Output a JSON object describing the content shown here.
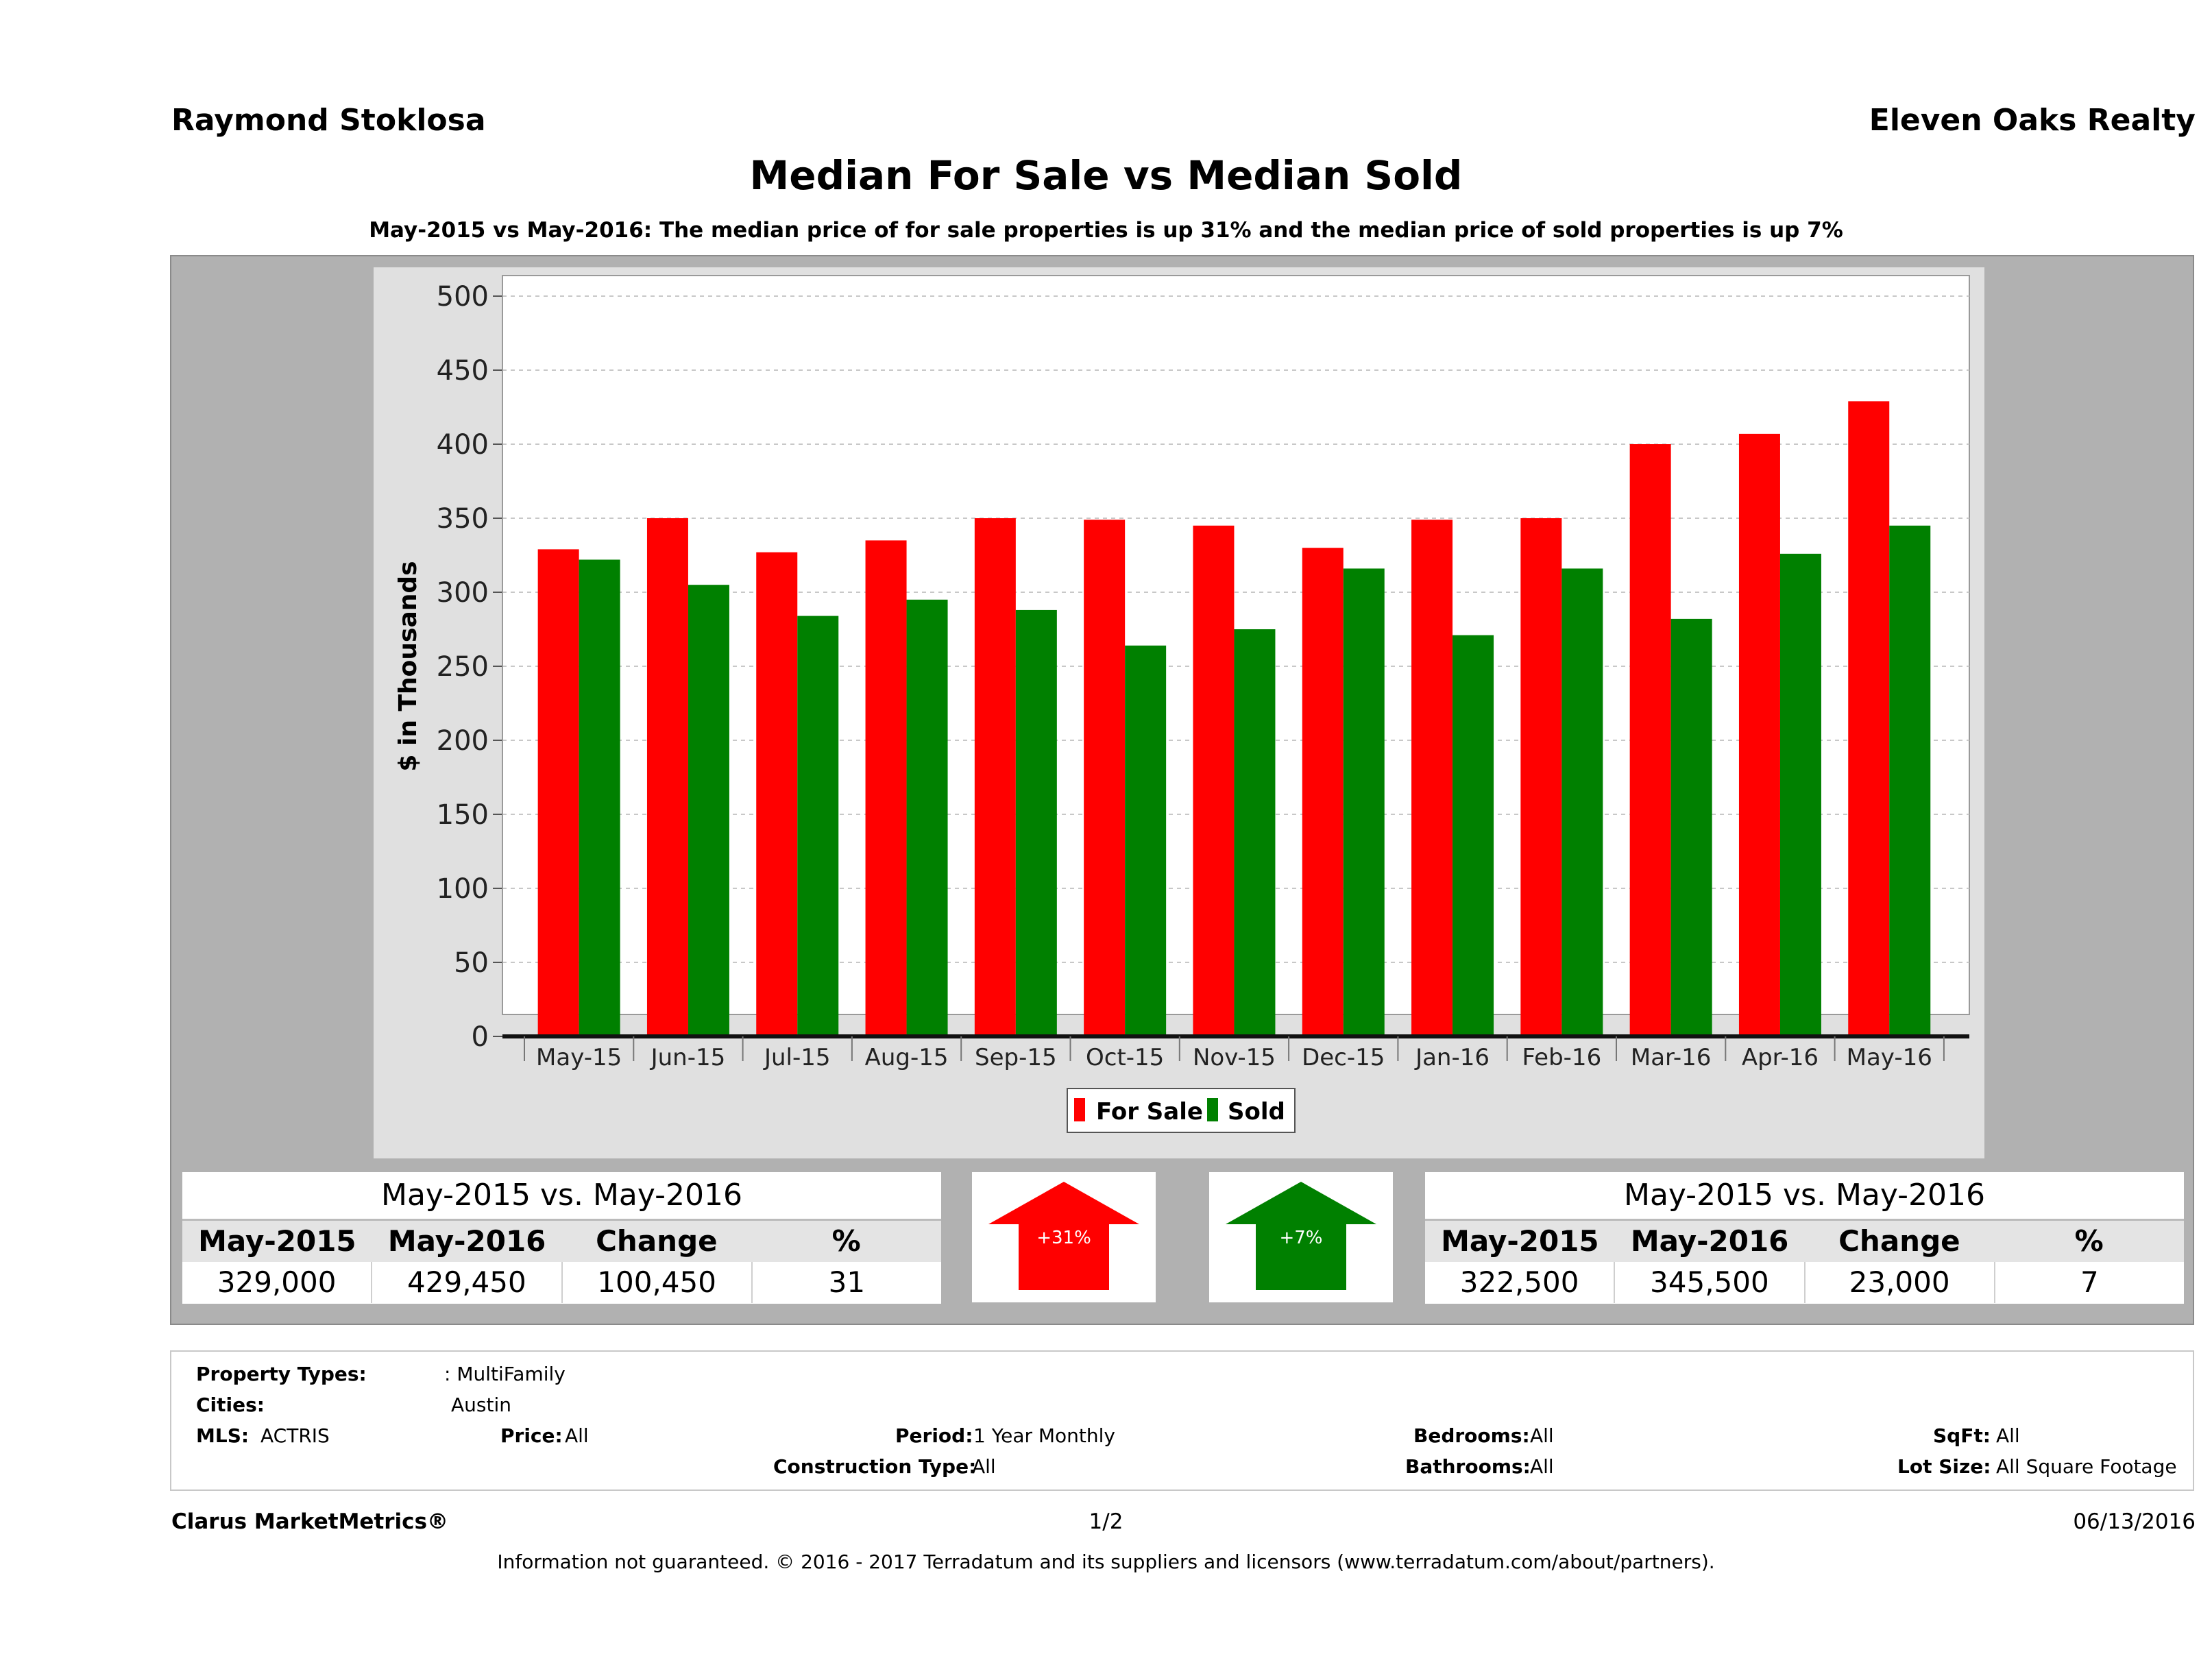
{
  "header": {
    "agent_name": "Raymond Stoklosa",
    "brokerage": "Eleven Oaks Realty"
  },
  "title": "Median For Sale vs Median Sold",
  "subtitle": "May-2015 vs May-2016: The median price of for sale properties is up 31% and the median price of sold properties is up 7%",
  "chart_data": {
    "type": "bar",
    "categories": [
      "May-15",
      "Jun-15",
      "Jul-15",
      "Aug-15",
      "Sep-15",
      "Oct-15",
      "Nov-15",
      "Dec-15",
      "Jan-16",
      "Feb-16",
      "Mar-16",
      "Apr-16",
      "May-16"
    ],
    "series": [
      {
        "name": "For Sale",
        "color": "#ff0000",
        "values": [
          329,
          350,
          327,
          335,
          350,
          349,
          345,
          330,
          349,
          350,
          400,
          407,
          429
        ]
      },
      {
        "name": "Sold",
        "color": "#008000",
        "values": [
          322,
          305,
          284,
          295,
          288,
          264,
          275,
          316,
          271,
          316,
          282,
          326,
          345
        ]
      }
    ],
    "ylabel": "$ in Thousands",
    "ylim": [
      0,
      500
    ],
    "yticks": [
      0,
      50,
      100,
      150,
      200,
      250,
      300,
      350,
      400,
      450,
      500
    ],
    "grid": true,
    "legend_position": "bottom"
  },
  "for_sale_table": {
    "title": "May-2015 vs. May-2016",
    "headers": [
      "May-2015",
      "May-2016",
      "Change",
      "%"
    ],
    "values": [
      "329,000",
      "429,450",
      "100,450",
      "31"
    ]
  },
  "sold_table": {
    "title": "May-2015 vs. May-2016",
    "headers": [
      "May-2015",
      "May-2016",
      "Change",
      "%"
    ],
    "values": [
      "322,500",
      "345,500",
      "23,000",
      "7"
    ]
  },
  "arrows": {
    "for_sale": {
      "label": "+31%",
      "color": "#ff0000",
      "direction": "up",
      "icon": "up-arrow-icon"
    },
    "sold": {
      "label": "+7%",
      "color": "#008000",
      "direction": "up",
      "icon": "up-arrow-icon"
    }
  },
  "info": {
    "property_types_label": "Property Types:",
    "property_types_value": ": MultiFamily",
    "cities_label": "Cities:",
    "cities_value": "Austin",
    "mls_label": "MLS:",
    "mls_value": "ACTRIS",
    "price_label": "Price:",
    "price_value": "All",
    "period_label": "Period:",
    "period_value": "1 Year Monthly",
    "construction_label": "Construction Type:",
    "construction_value": "All",
    "bedrooms_label": "Bedrooms:",
    "bedrooms_value": "All",
    "bathrooms_label": "Bathrooms:",
    "bathrooms_value": "All",
    "sqft_label": "SqFt:",
    "sqft_value": "All",
    "lotsize_label": "Lot Size:",
    "lotsize_value": "All Square Footage"
  },
  "footer": {
    "brand": "Clarus MarketMetrics®",
    "page": "1/2",
    "date": "06/13/2016",
    "disclaimer": "Information not guaranteed. © 2016 - 2017 Terradatum and its suppliers and licensors (www.terradatum.com/about/partners)."
  }
}
